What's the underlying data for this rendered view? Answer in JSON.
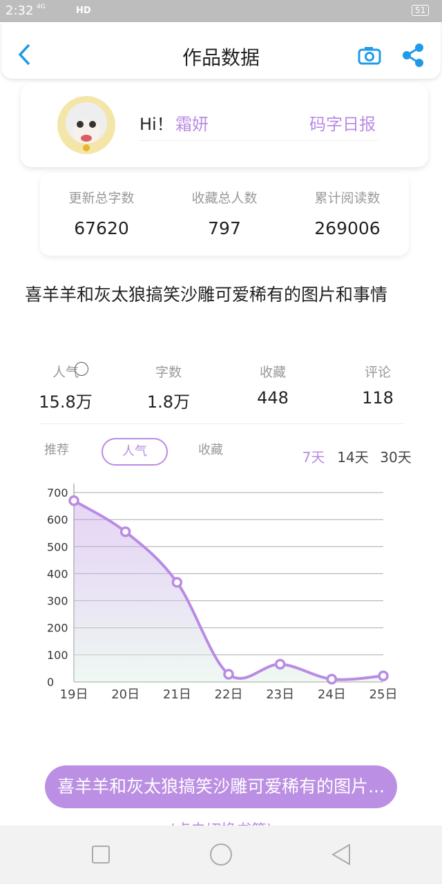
{
  "status_bar": {
    "time": "2:32",
    "network": "4G",
    "hd": "HD",
    "battery": "51"
  },
  "header": {
    "title": "作品数据"
  },
  "profile": {
    "greeting": "Hi！",
    "name": "霜妍",
    "daily_report": "码字日报"
  },
  "totals": [
    {
      "label": "更新总字数",
      "value": 67620
    },
    {
      "label": "收藏总人数",
      "value": 797
    },
    {
      "label": "累计阅读数",
      "value": 269006
    }
  ],
  "book": {
    "title": "喜羊羊和灰太狼搞笑沙雕可爱稀有的图片和事情",
    "stats": [
      {
        "label": "人气",
        "value": "15.8万"
      },
      {
        "label": "字数",
        "value": "1.8万"
      },
      {
        "label": "收藏",
        "value": "448"
      },
      {
        "label": "评论",
        "value": "118"
      }
    ]
  },
  "tabs": [
    "推荐",
    "人气",
    "收藏"
  ],
  "ranges": [
    "7天",
    "14天",
    "30天"
  ],
  "chart_data": {
    "type": "line",
    "color": "#b98be3",
    "categories": [
      "19日",
      "20日",
      "21日",
      "22日",
      "23日",
      "24日",
      "25日"
    ],
    "values": [
      670,
      555,
      368,
      28,
      65,
      10,
      22
    ],
    "ylim": [
      0,
      700
    ],
    "yticks": [
      0,
      100,
      200,
      300,
      400,
      500,
      600,
      700
    ],
    "grid": true
  },
  "switch_book": {
    "button": "喜羊羊和灰太狼搞笑沙雕可爱稀有的图片...",
    "hint": "(点击切换书籍)"
  }
}
